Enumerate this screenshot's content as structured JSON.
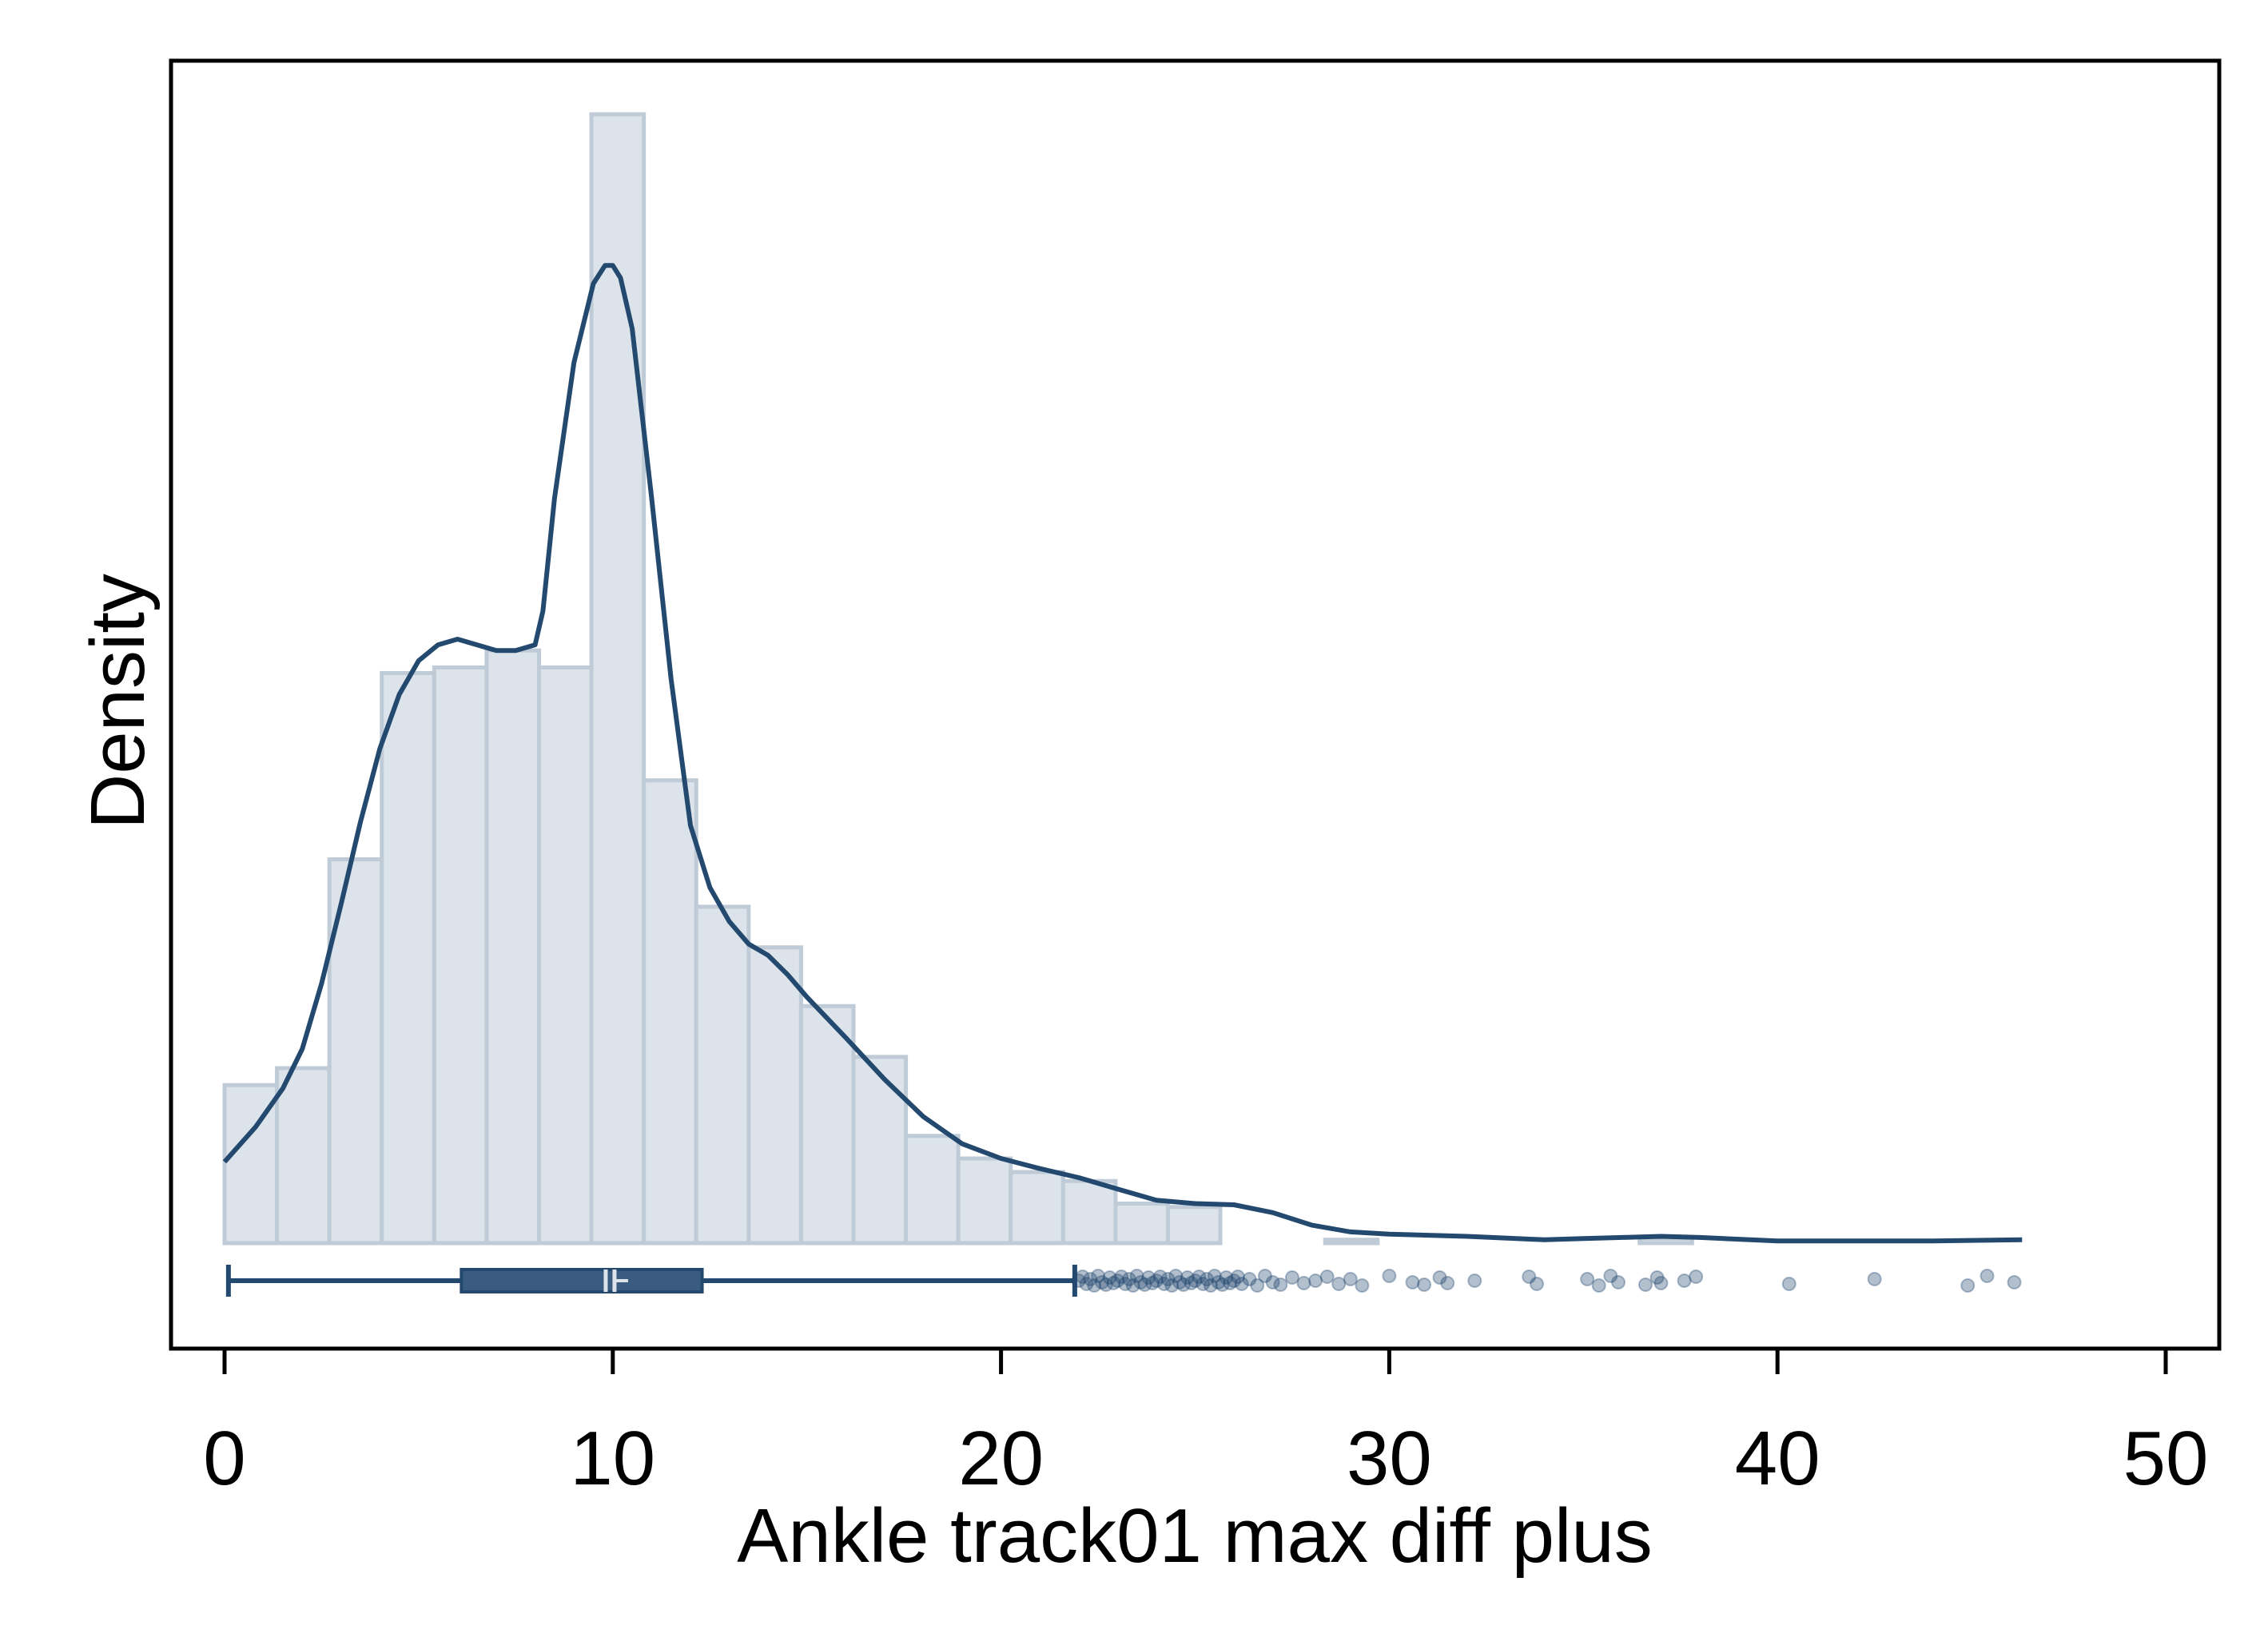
{
  "chart_data": {
    "type": "histogram",
    "xlabel": "Ankle track01 max diff plus",
    "ylabel": "Density",
    "xlim": [
      0,
      50
    ],
    "xticks": [
      0,
      10,
      20,
      30,
      40,
      50
    ],
    "y_ticks_shown": false,
    "grid": false,
    "legend": "none",
    "colors": {
      "bar_fill": "#dce3ea",
      "bar_stroke": "#bfcbd6",
      "line": "#23496f",
      "box_fill": "#3a5c80",
      "median": "#dce3ea",
      "outlier": "#23496f",
      "frame": "#000000"
    },
    "histogram": {
      "bin_width": 1.35,
      "bin_start": 0,
      "density_relative": [
        0.14,
        0.155,
        0.34,
        0.505,
        0.51,
        0.525,
        0.51,
        1.0,
        0.41,
        0.298,
        0.262,
        0.21,
        0.165,
        0.095,
        0.075,
        0.063,
        0.055,
        0.035,
        0.032,
        0.0,
        0.0,
        0.003,
        0.0,
        0.0,
        0.0,
        0.0,
        0.0,
        0.004
      ]
    },
    "kde": {
      "x": [
        0,
        0.8,
        1.5,
        2.0,
        2.5,
        3.0,
        3.5,
        4.0,
        4.5,
        5.0,
        5.5,
        6.0,
        6.5,
        7.0,
        7.5,
        8.0,
        8.2,
        8.5,
        9.0,
        9.5,
        9.8,
        10.0,
        10.2,
        10.5,
        11.0,
        11.5,
        12.0,
        12.5,
        13.0,
        13.5,
        14.0,
        14.5,
        15.0,
        16.0,
        17.0,
        18.0,
        19.0,
        20.0,
        21.0,
        22.0,
        23.0,
        24.0,
        25.0,
        26.0,
        27.0,
        28.0,
        29.0,
        30.0,
        32.0,
        34.0,
        35.0,
        36.0,
        37.0,
        38.0,
        40.0,
        42.0,
        44.0,
        46.3
      ],
      "y_relative": [
        0.072,
        0.103,
        0.137,
        0.172,
        0.23,
        0.3,
        0.373,
        0.438,
        0.486,
        0.516,
        0.53,
        0.535,
        0.53,
        0.525,
        0.525,
        0.53,
        0.56,
        0.66,
        0.78,
        0.85,
        0.866,
        0.866,
        0.855,
        0.81,
        0.66,
        0.5,
        0.37,
        0.315,
        0.285,
        0.265,
        0.255,
        0.238,
        0.218,
        0.182,
        0.145,
        0.112,
        0.088,
        0.075,
        0.066,
        0.058,
        0.048,
        0.038,
        0.035,
        0.034,
        0.027,
        0.016,
        0.01,
        0.008,
        0.006,
        0.003,
        0.004,
        0.005,
        0.006,
        0.005,
        0.002,
        0.002,
        0.002,
        0.003
      ]
    },
    "boxplot": {
      "whisker_low": 0.1,
      "q1": 6.1,
      "median": 9.9,
      "q3": 12.3,
      "whisker_high": 21.9,
      "outliers": [
        22.0,
        22.1,
        22.2,
        22.3,
        22.4,
        22.5,
        22.6,
        22.7,
        22.8,
        22.9,
        23.0,
        23.1,
        23.2,
        23.3,
        23.4,
        23.5,
        23.6,
        23.7,
        23.8,
        23.9,
        24.0,
        24.1,
        24.2,
        24.3,
        24.4,
        24.5,
        24.6,
        24.7,
        24.8,
        24.9,
        25.0,
        25.1,
        25.2,
        25.3,
        25.4,
        25.5,
        25.6,
        25.7,
        25.8,
        25.9,
        26.0,
        26.1,
        26.2,
        26.4,
        26.6,
        26.8,
        27.0,
        27.2,
        27.5,
        27.8,
        28.1,
        28.4,
        28.7,
        29.0,
        29.3,
        30.0,
        30.6,
        30.9,
        31.3,
        31.5,
        32.2,
        33.6,
        33.8,
        35.1,
        35.4,
        35.7,
        35.9,
        36.6,
        36.9,
        37.0,
        37.6,
        37.9,
        40.3,
        42.5,
        44.9,
        45.4,
        46.1
      ]
    }
  }
}
